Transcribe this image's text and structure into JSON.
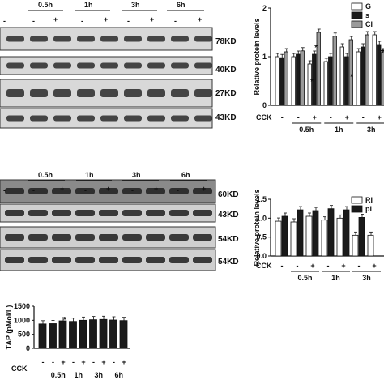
{
  "panelA": {
    "times": [
      "0.5h",
      "1h",
      "3h",
      "6h"
    ],
    "cck_marks": [
      "-",
      "-",
      "+",
      "-",
      "+",
      "-",
      "+",
      "-",
      "+"
    ],
    "kd": [
      "78KD",
      "40KD",
      "27KD",
      "43KD"
    ]
  },
  "panelB": {
    "times": [
      "0.5h",
      "1h",
      "3h",
      "6h"
    ],
    "cck_marks": [
      "-",
      "-",
      "+",
      "-",
      "+",
      "-",
      "+",
      "-",
      "+"
    ],
    "kd": [
      "60KD",
      "43KD",
      "54KD",
      "54KD"
    ]
  },
  "chart_data": [
    {
      "type": "bar",
      "ylabel": "Relative protein levels",
      "ylim": [
        0,
        2
      ],
      "yticks": [
        "0",
        "1",
        "2"
      ],
      "legend": [
        "G",
        "s",
        "Cl"
      ],
      "xaxis_label": "CCK",
      "cck": [
        "-",
        "-",
        "+",
        "-",
        "+",
        "-",
        "+"
      ],
      "times": [
        "0.5h",
        "1h",
        "3h"
      ],
      "colors": [
        "#ffffff",
        "#1a1a1a",
        "#9a9a9a"
      ],
      "values": [
        [
          1.0,
          0.98,
          1.1
        ],
        [
          1.0,
          1.05,
          1.12
        ],
        [
          0.85,
          1.05,
          1.5
        ],
        [
          0.9,
          1.0,
          1.42
        ],
        [
          1.2,
          1.0,
          1.35
        ],
        [
          1.1,
          1.2,
          1.45
        ],
        [
          1.45,
          1.25,
          1.1
        ]
      ],
      "annotations": [
        "*",
        "*",
        "*",
        "+"
      ]
    },
    {
      "type": "bar",
      "ylabel": "Relative protein levels",
      "ylim": [
        0,
        1.5
      ],
      "yticks": [
        "0.0",
        "0.5",
        "1.0",
        "1.5"
      ],
      "legend": [
        "RI",
        "pl"
      ],
      "xaxis_label": "CCK",
      "cck": [
        "-",
        "-",
        "+",
        "-",
        "+",
        "-",
        "+"
      ],
      "times": [
        "0.5h",
        "1h",
        "3h"
      ],
      "colors": [
        "#ffffff",
        "#1a1a1a"
      ],
      "values": [
        [
          0.92,
          1.05
        ],
        [
          0.9,
          1.22
        ],
        [
          1.05,
          1.2
        ],
        [
          0.95,
          1.25
        ],
        [
          1.0,
          1.22
        ],
        [
          0.55,
          1.02
        ],
        [
          0.55,
          0
        ]
      ]
    },
    {
      "type": "bar",
      "ylabel": "TAP (pMol/L)",
      "ylim": [
        0,
        1500
      ],
      "yticks": [
        "0",
        "500",
        "1000",
        "1500"
      ],
      "xaxis_label": "CCK",
      "cck": [
        "-",
        "-",
        "+",
        "-",
        "+",
        "-",
        "+",
        "-",
        "+"
      ],
      "times": [
        "0.5h",
        "1h",
        "3h",
        "6h"
      ],
      "colors": [
        "#1a1a1a"
      ],
      "values": [
        870,
        880,
        980,
        960,
        1000,
        1020,
        1030,
        1010,
        990
      ],
      "annotations": [
        "*"
      ]
    }
  ]
}
